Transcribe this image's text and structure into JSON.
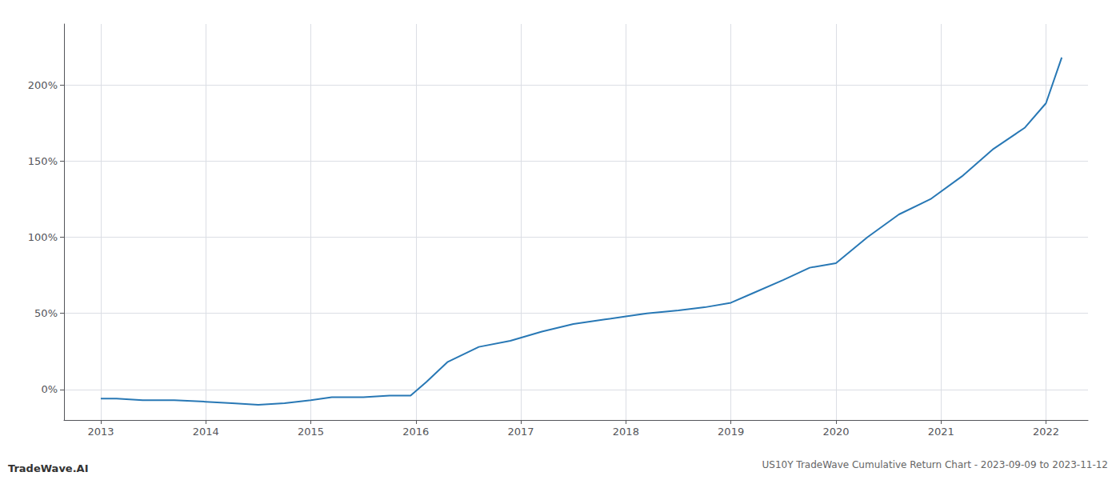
{
  "chart_data": {
    "type": "line",
    "title": "US10Y TradeWave Cumulative Return Chart - 2023-09-09 to 2023-11-12",
    "annotations": [
      "TradeWave.AI"
    ],
    "x": [
      2013.0,
      2013.15,
      2013.4,
      2013.7,
      2014.0,
      2014.25,
      2014.5,
      2014.75,
      2015.0,
      2015.2,
      2015.5,
      2015.75,
      2015.95,
      2016.1,
      2016.3,
      2016.6,
      2016.9,
      2017.2,
      2017.5,
      2017.8,
      2018.0,
      2018.2,
      2018.5,
      2018.75,
      2019.0,
      2019.2,
      2019.5,
      2019.75,
      2020.0,
      2020.3,
      2020.6,
      2020.9,
      2021.2,
      2021.5,
      2021.8,
      2022.0,
      2022.15
    ],
    "values": [
      -6,
      -6,
      -7,
      -7,
      -8,
      -9,
      -10,
      -9,
      -7,
      -5,
      -5,
      -4,
      -4,
      5,
      18,
      28,
      32,
      38,
      43,
      46,
      48,
      50,
      52,
      54,
      57,
      63,
      72,
      80,
      83,
      100,
      115,
      125,
      140,
      158,
      172,
      188,
      218
    ],
    "color": "#2878b5",
    "xlim": [
      2012.65,
      2022.4
    ],
    "xticks": [
      2013,
      2014,
      2015,
      2016,
      2017,
      2018,
      2019,
      2020,
      2021,
      2022
    ],
    "ylim": [
      -20,
      240
    ],
    "yticks": [
      {
        "value": 0,
        "label": "0%"
      },
      {
        "value": 50,
        "label": "50%"
      },
      {
        "value": 100,
        "label": "100%"
      },
      {
        "value": 150,
        "label": "150%"
      },
      {
        "value": 200,
        "label": "200%"
      }
    ],
    "grid": true
  }
}
